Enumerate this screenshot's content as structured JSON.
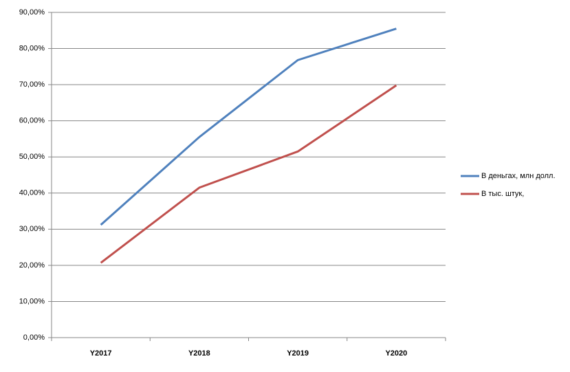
{
  "chart_data": {
    "type": "line",
    "categories": [
      "Y2017",
      "Y2018",
      "Y2019",
      "Y2020"
    ],
    "series": [
      {
        "name": "В деньгах, млн долл.",
        "color": "#4f81bd",
        "values": [
          31.2,
          55.5,
          76.8,
          85.5
        ]
      },
      {
        "name": "В тыс. штук,",
        "color": "#c0504d",
        "values": [
          20.7,
          41.5,
          51.5,
          69.8
        ]
      }
    ],
    "ylim": [
      0,
      90
    ],
    "yticks": [
      {
        "value": 0,
        "label": "0,00%"
      },
      {
        "value": 10,
        "label": "10,00%"
      },
      {
        "value": 20,
        "label": "20,00%"
      },
      {
        "value": 30,
        "label": "30,00%"
      },
      {
        "value": 40,
        "label": "40,00%"
      },
      {
        "value": 50,
        "label": "50,00%"
      },
      {
        "value": 60,
        "label": "60,00%"
      },
      {
        "value": 70,
        "label": "70,00%"
      },
      {
        "value": 80,
        "label": "80,00%"
      },
      {
        "value": 90,
        "label": "90,00%"
      }
    ],
    "grid": true,
    "legend": "right"
  }
}
